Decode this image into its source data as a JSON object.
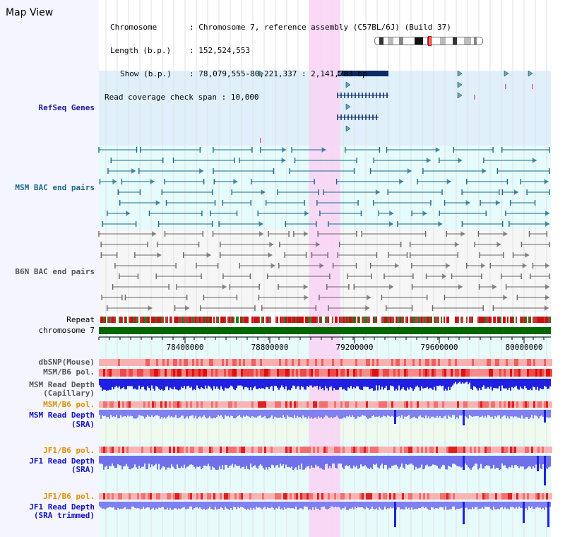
{
  "title": "Map View",
  "info": {
    "rows": [
      {
        "key": "Chromosome",
        "value": ": Chromosome 7, reference assembly (C57BL/6J) (Build 37)"
      },
      {
        "key": "Length (b.p.)",
        "value": ": 152,524,553"
      },
      {
        "key": "Show (b.p.)",
        "value": ": 78,079,555-80,221,337 : 2,141,783 bp"
      },
      {
        "key": "Read coverage check span",
        "value": ": 10,000"
      }
    ]
  },
  "tracks": {
    "refseq": "RefSeq Genes",
    "msm_bac": "MSM BAC end pairs",
    "b6n_bac": "B6N BAC end pairs",
    "repeat": "Repeat",
    "chromosome": "chromosome 7",
    "dbsnp": "dbSNP(Mouse)",
    "msm_b6_pol_1": "MSM/B6 pol.",
    "msm_depth_cap_1": "MSM Read Depth",
    "msm_depth_cap_2": "(Capillary)",
    "msm_b6_pol_2": "MSM/B6 pol.",
    "msm_depth_sra_1": "MSM Read Depth",
    "msm_depth_sra_2": "(SRA)",
    "jf1_b6_pol_1": "JF1/B6 pol.",
    "jf1_depth_sra_1": "JF1 Read Depth",
    "jf1_depth_sra_2": "(SRA)",
    "jf1_b6_pol_2": "JF1/B6 pol.",
    "jf1_depth_trim_1": "JF1 Read Depth",
    "jf1_depth_trim_2": "(SRA trimmed)"
  },
  "axis": {
    "ticks": [
      "78400000",
      "78800000",
      "79200000",
      "79600000",
      "80000000"
    ]
  },
  "colors": {
    "highlight": "#f9d2f4",
    "refseq_bg": "#dff0fb",
    "msm_bg": "#e6fbfb",
    "b6n_bg": "#f6f6f6",
    "chromosome": "#006600",
    "gene": "#0a2b66",
    "msm_feature": "#1a6a8a",
    "b6n_feature": "#666666",
    "depth_blue": "#2020e0",
    "depth_light": "#8080f0"
  }
}
